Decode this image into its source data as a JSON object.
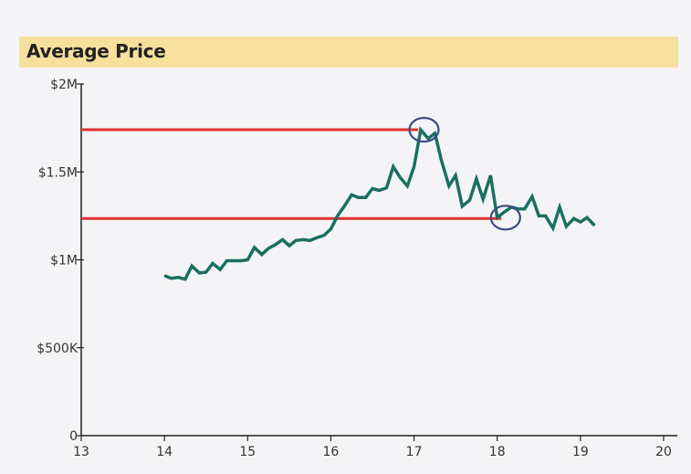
{
  "chart_data": {
    "type": "line",
    "title": "Average Price",
    "xlabel": "",
    "ylabel": "",
    "xlim": [
      13,
      20
    ],
    "ylim": [
      0,
      2000000
    ],
    "x_ticks": [
      13,
      14,
      15,
      16,
      17,
      18,
      19,
      20
    ],
    "x_tick_labels": [
      "13",
      "14",
      "15",
      "16",
      "17",
      "18",
      "19",
      "20"
    ],
    "y_ticks": [
      0,
      500000,
      1000000,
      1500000,
      2000000
    ],
    "y_tick_labels": [
      "0",
      "$500K",
      "$1M",
      "$1.5M",
      "$2M"
    ],
    "grid": false,
    "colors": {
      "series": "#1a7060",
      "reference_lines": "#e03030",
      "highlight_circles": "#3c4c80",
      "title_bar": "#f7df9c"
    },
    "series": [
      {
        "points": [
          [
            14.0,
            910000
          ],
          [
            14.08,
            895000
          ],
          [
            14.17,
            900000
          ],
          [
            14.25,
            890000
          ],
          [
            14.33,
            965000
          ],
          [
            14.42,
            925000
          ],
          [
            14.5,
            930000
          ],
          [
            14.58,
            980000
          ],
          [
            14.67,
            945000
          ],
          [
            14.75,
            995000
          ],
          [
            14.83,
            995000
          ],
          [
            14.92,
            995000
          ],
          [
            15.0,
            1000000
          ],
          [
            15.08,
            1070000
          ],
          [
            15.17,
            1030000
          ],
          [
            15.25,
            1065000
          ],
          [
            15.33,
            1085000
          ],
          [
            15.42,
            1115000
          ],
          [
            15.5,
            1080000
          ],
          [
            15.58,
            1110000
          ],
          [
            15.67,
            1115000
          ],
          [
            15.75,
            1110000
          ],
          [
            15.83,
            1125000
          ],
          [
            15.92,
            1140000
          ],
          [
            16.0,
            1175000
          ],
          [
            16.08,
            1250000
          ],
          [
            16.17,
            1310000
          ],
          [
            16.25,
            1370000
          ],
          [
            16.33,
            1355000
          ],
          [
            16.42,
            1355000
          ],
          [
            16.5,
            1405000
          ],
          [
            16.58,
            1395000
          ],
          [
            16.67,
            1410000
          ],
          [
            16.75,
            1530000
          ],
          [
            16.83,
            1470000
          ],
          [
            16.92,
            1420000
          ],
          [
            17.0,
            1530000
          ],
          [
            17.08,
            1740000
          ],
          [
            17.17,
            1690000
          ],
          [
            17.25,
            1720000
          ],
          [
            17.33,
            1565000
          ],
          [
            17.42,
            1420000
          ],
          [
            17.5,
            1480000
          ],
          [
            17.58,
            1305000
          ],
          [
            17.67,
            1340000
          ],
          [
            17.75,
            1460000
          ],
          [
            17.83,
            1345000
          ],
          [
            17.92,
            1480000
          ],
          [
            18.0,
            1240000
          ],
          [
            18.08,
            1270000
          ],
          [
            18.17,
            1300000
          ],
          [
            18.25,
            1290000
          ],
          [
            18.33,
            1290000
          ],
          [
            18.42,
            1360000
          ],
          [
            18.5,
            1250000
          ],
          [
            18.58,
            1250000
          ],
          [
            18.67,
            1180000
          ],
          [
            18.75,
            1300000
          ],
          [
            18.83,
            1190000
          ],
          [
            18.92,
            1235000
          ],
          [
            19.0,
            1215000
          ],
          [
            19.08,
            1240000
          ],
          [
            19.17,
            1195000
          ]
        ]
      }
    ],
    "reference_lines": [
      {
        "y": 1740000,
        "x_end": 17.05
      },
      {
        "y": 1235000,
        "x_end": 18.05
      }
    ],
    "highlight_circles": [
      {
        "x": 17.12,
        "y": 1740000
      },
      {
        "x": 18.1,
        "y": 1240000
      }
    ]
  }
}
